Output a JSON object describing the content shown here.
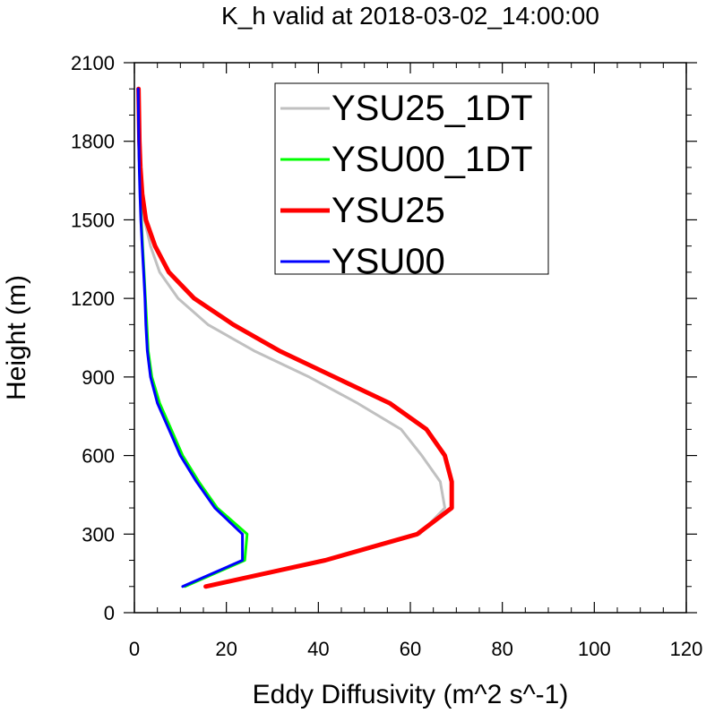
{
  "chart_data": {
    "type": "line",
    "title": "K_h valid at 2018-03-02_14:00:00",
    "xlabel": "Eddy Diffusivity (m^2 s^-1)",
    "ylabel": "Height (m)",
    "xlim": [
      0,
      120
    ],
    "ylim": [
      0,
      2100
    ],
    "xticks": [
      "0",
      "20",
      "40",
      "60",
      "80",
      "100",
      "120"
    ],
    "yticks": [
      "0",
      "300",
      "600",
      "900",
      "1200",
      "1500",
      "1800",
      "2100"
    ],
    "grid": false,
    "legend_position": "top-right",
    "series": [
      {
        "name": "YSU25_1DT",
        "color": "#c0c0c0",
        "width": 3,
        "points": [
          [
            16,
            100
          ],
          [
            42,
            200
          ],
          [
            62,
            300
          ],
          [
            67.5,
            400
          ],
          [
            66.5,
            500
          ],
          [
            62.5,
            600
          ],
          [
            58,
            700
          ],
          [
            48.5,
            800
          ],
          [
            38,
            900
          ],
          [
            26,
            1000
          ],
          [
            16,
            1100
          ],
          [
            9.5,
            1200
          ],
          [
            5.5,
            1300
          ],
          [
            3.5,
            1400
          ],
          [
            2.2,
            1500
          ],
          [
            1.6,
            1600
          ],
          [
            1.2,
            1700
          ],
          [
            1,
            1800
          ],
          [
            0.9,
            1900
          ],
          [
            0.8,
            2000
          ]
        ]
      },
      {
        "name": "YSU00_1DT",
        "color": "#00ff00",
        "width": 3,
        "points": [
          [
            11,
            100
          ],
          [
            24,
            200
          ],
          [
            24.5,
            300
          ],
          [
            18,
            400
          ],
          [
            14,
            500
          ],
          [
            10.5,
            600
          ],
          [
            8,
            700
          ],
          [
            5.5,
            800
          ],
          [
            3.8,
            900
          ],
          [
            3,
            1000
          ],
          [
            2.7,
            1100
          ],
          [
            2.4,
            1200
          ],
          [
            2.1,
            1300
          ],
          [
            1.8,
            1400
          ],
          [
            1.5,
            1500
          ],
          [
            1.3,
            1600
          ],
          [
            1.1,
            1700
          ],
          [
            1,
            1800
          ],
          [
            0.9,
            1900
          ],
          [
            0.85,
            2000
          ]
        ]
      },
      {
        "name": "YSU25",
        "color": "#ff0000",
        "width": 5,
        "points": [
          [
            15.5,
            100
          ],
          [
            41.5,
            200
          ],
          [
            61.5,
            300
          ],
          [
            69,
            400
          ],
          [
            69,
            500
          ],
          [
            67.5,
            600
          ],
          [
            63.5,
            700
          ],
          [
            55.5,
            800
          ],
          [
            43.5,
            900
          ],
          [
            31.5,
            1000
          ],
          [
            21.5,
            1100
          ],
          [
            13,
            1200
          ],
          [
            7.5,
            1300
          ],
          [
            4.5,
            1400
          ],
          [
            2.5,
            1500
          ],
          [
            1.7,
            1600
          ],
          [
            1.3,
            1700
          ],
          [
            1.1,
            1800
          ],
          [
            1,
            1900
          ],
          [
            0.9,
            2000
          ]
        ]
      },
      {
        "name": "YSU00",
        "color": "#0000ff",
        "width": 3,
        "points": [
          [
            10.5,
            100
          ],
          [
            23.5,
            200
          ],
          [
            23.5,
            300
          ],
          [
            17.5,
            400
          ],
          [
            13.5,
            500
          ],
          [
            10,
            600
          ],
          [
            7.5,
            700
          ],
          [
            5,
            800
          ],
          [
            3.5,
            900
          ],
          [
            2.8,
            1000
          ],
          [
            2.5,
            1100
          ],
          [
            2.3,
            1200
          ],
          [
            2,
            1300
          ],
          [
            1.7,
            1400
          ],
          [
            1.4,
            1500
          ],
          [
            1.2,
            1600
          ],
          [
            1.05,
            1700
          ],
          [
            0.95,
            1800
          ],
          [
            0.88,
            1900
          ],
          [
            0.82,
            2000
          ]
        ]
      }
    ]
  }
}
